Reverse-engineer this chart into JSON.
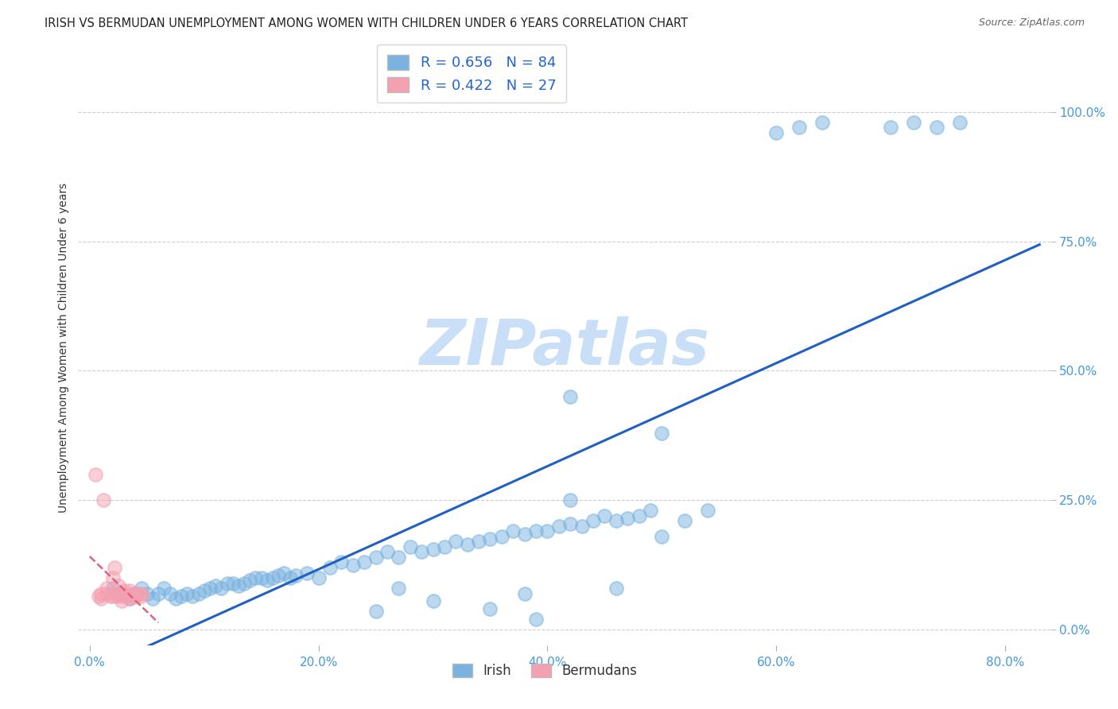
{
  "title": "IRISH VS BERMUDAN UNEMPLOYMENT AMONG WOMEN WITH CHILDREN UNDER 6 YEARS CORRELATION CHART",
  "source": "Source: ZipAtlas.com",
  "ylabel": "Unemployment Among Women with Children Under 6 years",
  "irish_R": 0.656,
  "irish_N": 84,
  "bermuda_R": 0.422,
  "bermuda_N": 27,
  "irish_color": "#7ab3e0",
  "bermuda_color": "#f4a0b0",
  "irish_line_color": "#2060c0",
  "bermuda_line_color": "#e06080",
  "background_color": "#ffffff",
  "watermark_color": "#c8dff7",
  "irish_x": [
    2,
    2.5,
    3,
    3.5,
    4,
    4.5,
    5,
    5.5,
    6,
    6.5,
    7,
    7.5,
    8,
    8.5,
    9,
    9.5,
    10,
    10.5,
    11,
    11.5,
    12,
    12.5,
    13,
    13.5,
    14,
    14.5,
    15,
    15.5,
    16,
    16.5,
    17,
    17.5,
    18,
    19,
    20,
    21,
    22,
    23,
    24,
    25,
    26,
    27,
    28,
    29,
    30,
    31,
    32,
    33,
    34,
    35,
    36,
    37,
    38,
    39,
    40,
    41,
    42,
    43,
    44,
    45,
    46,
    47,
    48,
    49,
    50,
    52,
    54,
    42,
    38,
    35,
    60,
    62,
    64,
    42,
    30,
    25,
    27,
    46,
    39,
    50,
    70,
    72,
    74,
    76
  ],
  "irish_y": [
    8,
    7,
    7,
    6,
    7,
    8,
    7,
    6,
    7,
    8,
    7,
    6,
    6.5,
    7,
    6.5,
    7,
    7.5,
    8,
    8.5,
    8,
    9,
    9,
    8.5,
    9,
    9.5,
    10,
    10,
    9.5,
    10,
    10.5,
    11,
    10,
    10.5,
    11,
    10,
    12,
    13,
    12.5,
    13,
    14,
    15,
    14,
    16,
    15,
    15.5,
    16,
    17,
    16.5,
    17,
    17.5,
    18,
    19,
    18.5,
    19,
    19,
    20,
    20.5,
    20,
    21,
    22,
    21,
    21.5,
    22,
    23,
    38,
    21,
    23,
    25,
    7,
    4,
    96,
    97,
    98,
    45,
    5.5,
    3.5,
    8,
    8,
    2,
    18,
    97,
    98,
    97,
    98
  ],
  "bermuda_x": [
    0.5,
    0.8,
    1.0,
    1.0,
    1.2,
    1.5,
    1.5,
    1.8,
    2.0,
    2.0,
    2.2,
    2.2,
    2.5,
    2.5,
    2.8,
    2.8,
    3.0,
    3.0,
    3.2,
    3.5,
    3.5,
    3.8,
    4.0,
    4.0,
    4.2,
    4.5,
    4.5
  ],
  "bermuda_y": [
    30,
    6.5,
    7,
    6,
    25,
    7,
    8,
    6.5,
    10,
    6.5,
    12,
    7,
    6.5,
    8.5,
    5.5,
    7,
    6.5,
    7.5,
    6.5,
    7.5,
    6,
    7,
    6.5,
    6.5,
    7,
    6.5,
    7
  ],
  "xticks": [
    0,
    20,
    40,
    60,
    80
  ],
  "xticklabels": [
    "0.0%",
    "20.0%",
    "40.0%",
    "60.0%",
    "80.0%"
  ],
  "yticks_right": [
    0,
    25,
    50,
    75,
    100
  ],
  "yticklabels_right": [
    "0.0%",
    "25.0%",
    "50.0%",
    "75.0%",
    "100.0%"
  ],
  "xlim": [
    -1,
    84
  ],
  "ylim": [
    -3,
    112
  ]
}
